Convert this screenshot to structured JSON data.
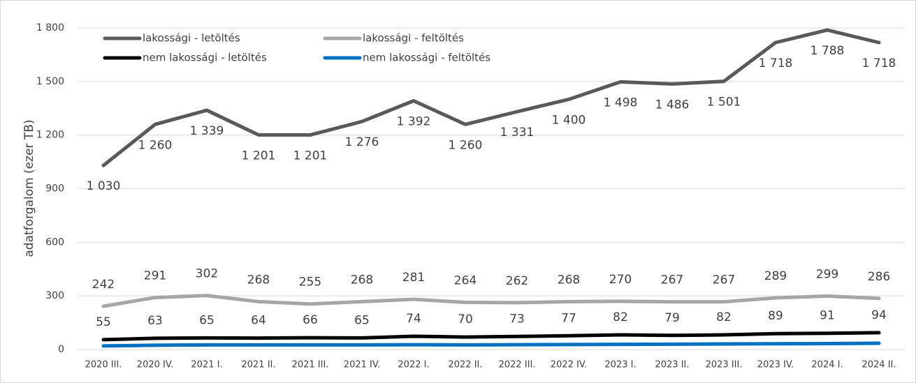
{
  "chart_data": {
    "type": "line",
    "ylabel": "adatforgalom (ezer TB)",
    "categories": [
      "2020 III.",
      "2020 IV.",
      "2021 I.",
      "2021 II.",
      "2021 III.",
      "2021 IV.",
      "2022 I.",
      "2022 II.",
      "2022 III.",
      "2022 IV.",
      "2023 I.",
      "2023 II.",
      "2023 III.",
      "2023 IV.",
      "2024 I.",
      "2024 II."
    ],
    "series": [
      {
        "name": "lakossági - letöltés",
        "color": "#595959",
        "data_labels": true,
        "values": [
          1030,
          1260,
          1339,
          1201,
          1201,
          1276,
          1392,
          1260,
          1331,
          1400,
          1498,
          1486,
          1501,
          1718,
          1788,
          1718
        ],
        "value_labels": [
          "1 030",
          "1 260",
          "1 339",
          "1 201",
          "1 201",
          "1 276",
          "1 392",
          "1 260",
          "1 331",
          "1 400",
          "1 498",
          "1 486",
          "1 501",
          "1 718",
          "1 788",
          "1 718"
        ]
      },
      {
        "name": "lakossági - feltöltés",
        "color": "#a6a6a6",
        "data_labels": true,
        "values": [
          242,
          291,
          302,
          268,
          255,
          268,
          281,
          264,
          262,
          268,
          270,
          267,
          267,
          289,
          299,
          286
        ]
      },
      {
        "name": "nem lakossági - letöltés",
        "color": "#000000",
        "data_labels": true,
        "values": [
          55,
          63,
          65,
          64,
          66,
          65,
          74,
          70,
          73,
          77,
          82,
          79,
          82,
          89,
          91,
          94
        ]
      },
      {
        "name": "nem lakossági - feltöltés",
        "color": "#0070c0",
        "data_labels": false,
        "values": [
          20,
          24,
          26,
          26,
          26,
          26,
          27,
          26,
          27,
          28,
          29,
          30,
          31,
          32,
          33,
          35
        ]
      }
    ],
    "ylim": [
      0,
      1800
    ],
    "yticks": [
      0,
      300,
      600,
      900,
      {
        "value": 1200,
        "label": "1 200"
      },
      {
        "value": 1500,
        "label": "1 500"
      },
      {
        "value": 1800,
        "label": "1 800"
      }
    ],
    "grid": true,
    "legend": "upper left"
  }
}
